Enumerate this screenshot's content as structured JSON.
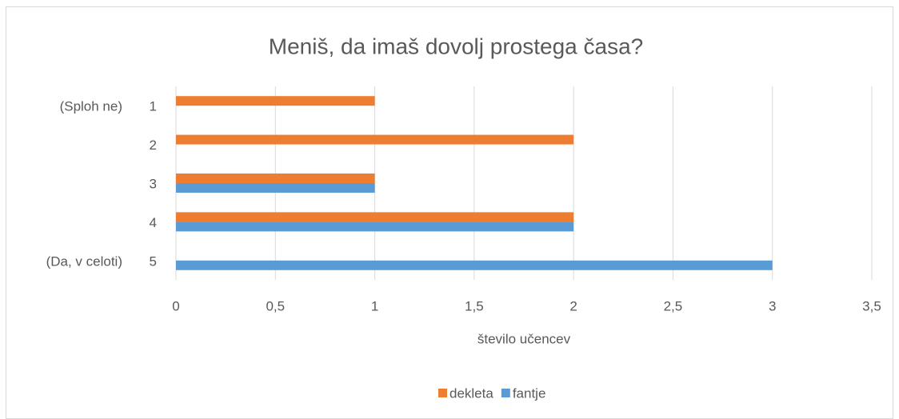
{
  "chart_data": {
    "type": "bar",
    "orientation": "horizontal",
    "title": "Meniš, da imaš dovolj prostega časa?",
    "categories": [
      "1",
      "2",
      "3",
      "4",
      "5"
    ],
    "category_notes": [
      "(Sploh ne)",
      null,
      null,
      null,
      "(Da, v celoti)"
    ],
    "series": [
      {
        "name": "dekleta",
        "color": "#ED7D31",
        "values": [
          1,
          2,
          1,
          2,
          0
        ]
      },
      {
        "name": "fantje",
        "color": "#5B9BD5",
        "values": [
          0,
          0,
          1,
          2,
          3
        ]
      }
    ],
    "xlabel": "število učencev",
    "xlim": [
      0,
      3.5
    ],
    "xticks": [
      0,
      {
        "value": 0.5,
        "label": "0,5"
      },
      1,
      {
        "value": 1.5,
        "label": "1,5"
      },
      2,
      {
        "value": 2.5,
        "label": "2,5"
      },
      3,
      {
        "value": 3.5,
        "label": "3,5"
      }
    ],
    "grid": true,
    "legend": "bottom"
  }
}
